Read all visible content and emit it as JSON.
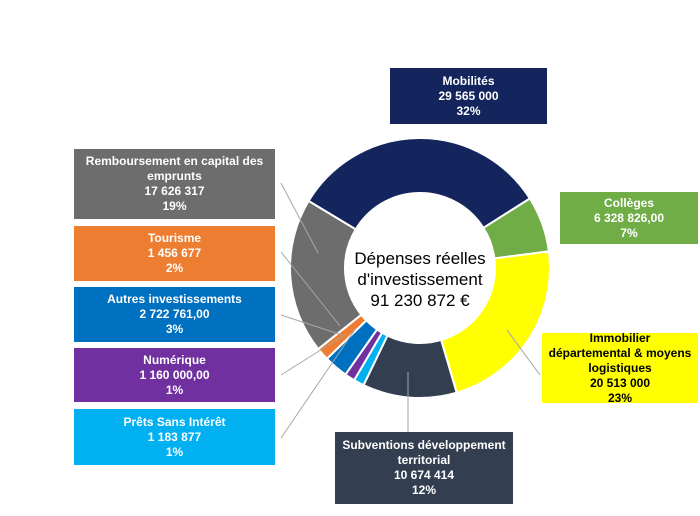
{
  "chart_data": {
    "type": "pie",
    "variant": "donut",
    "center_label": [
      "Dépenses réelles",
      "d'investissement",
      "91 230 872 €"
    ],
    "slices": [
      {
        "name": "Mobilités",
        "amount": "29 565 000",
        "value": 29565000,
        "percent": "32%",
        "color": "#14245c",
        "text_color": "#ffffff"
      },
      {
        "name": "Collèges",
        "amount": "6 328 826,00",
        "value": 6328826,
        "percent": "7%",
        "color": "#70ad47",
        "text_color": "#ffffff"
      },
      {
        "name": "Immobilier départemental & moyens logistiques",
        "amount": "20 513 000",
        "value": 20513000,
        "percent": "23%",
        "color": "#ffff00",
        "text_color": "#000000"
      },
      {
        "name": "Subventions développement territorial",
        "amount": "10 674 414",
        "value": 10674414,
        "percent": "12%",
        "color": "#333f50",
        "text_color": "#ffffff"
      },
      {
        "name": "Prêts Sans Intérêt",
        "amount": "1 183 877",
        "value": 1183877,
        "percent": "1%",
        "color": "#00b0f0",
        "text_color": "#ffffff"
      },
      {
        "name": "Numérique",
        "amount": "1 160 000,00",
        "value": 1160000,
        "percent": "1%",
        "color": "#7030a0",
        "text_color": "#ffffff"
      },
      {
        "name": "Autres investissements",
        "amount": "2 722 761,00",
        "value": 2722761,
        "percent": "3%",
        "color": "#0070c0",
        "text_color": "#ffffff"
      },
      {
        "name": "Tourisme",
        "amount": "1 456 677",
        "value": 1456677,
        "percent": "2%",
        "color": "#ed7d31",
        "text_color": "#ffffff"
      },
      {
        "name": "Remboursement en capital des emprunts",
        "amount": "17 626 317",
        "value": 17626317,
        "percent": "19%",
        "color": "#6d6d6d",
        "text_color": "#ffffff"
      }
    ]
  }
}
